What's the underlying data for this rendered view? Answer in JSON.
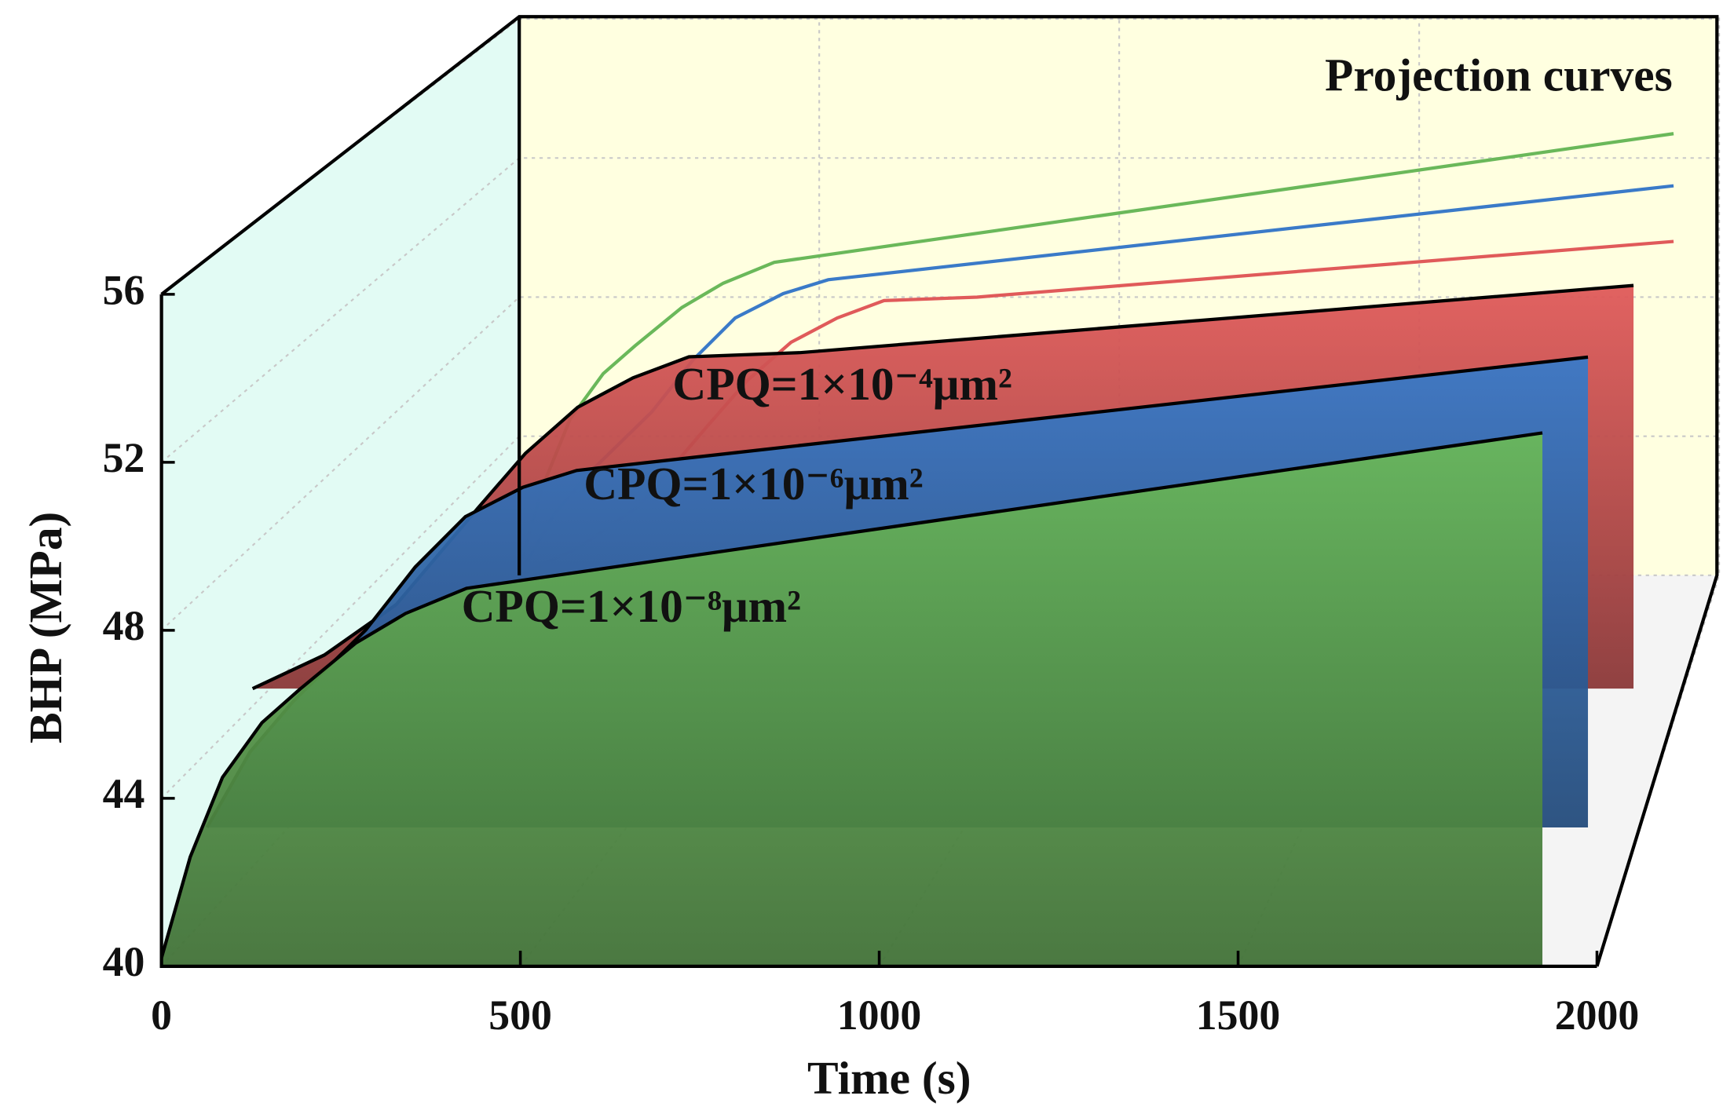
{
  "chart_data": {
    "type": "ribbon",
    "annotation": "Projection curves",
    "xlabel": "Time (s)",
    "ylabel": "BHP (MPa)",
    "xlim": [
      0,
      2000
    ],
    "ylim": [
      40,
      56
    ],
    "xticks": [
      0,
      500,
      1000,
      1500,
      2000
    ],
    "yticks": [
      40,
      44,
      48,
      52,
      56
    ],
    "series": [
      {
        "name": "CPQ=1×10⁻⁴μm²",
        "color": "#e05a5a",
        "x": [
          0,
          100,
          200,
          314,
          380,
          453,
          530,
          608,
          763,
          1924
        ],
        "values": [
          40,
          40.8,
          42.0,
          44.3,
          45.6,
          46.7,
          47.4,
          47.9,
          48.0,
          49.6
        ]
      },
      {
        "name": "CPQ=1×10⁻⁶μm²",
        "color": "#3a7ac8",
        "x": [
          0,
          60,
          120,
          221,
          290,
          360,
          440,
          515,
          1924
        ],
        "values": [
          40,
          41.8,
          43.0,
          44.7,
          46.2,
          47.4,
          48.1,
          48.5,
          51.2
        ]
      },
      {
        "name": "CPQ=1×10⁻⁸μm²",
        "color": "#6ab85a",
        "x": [
          0,
          40,
          85,
          140,
          193,
          271,
          340,
          425,
          1924
        ],
        "values": [
          40.2,
          42.6,
          44.5,
          45.8,
          46.6,
          47.7,
          48.4,
          49.0,
          52.7
        ]
      }
    ]
  }
}
